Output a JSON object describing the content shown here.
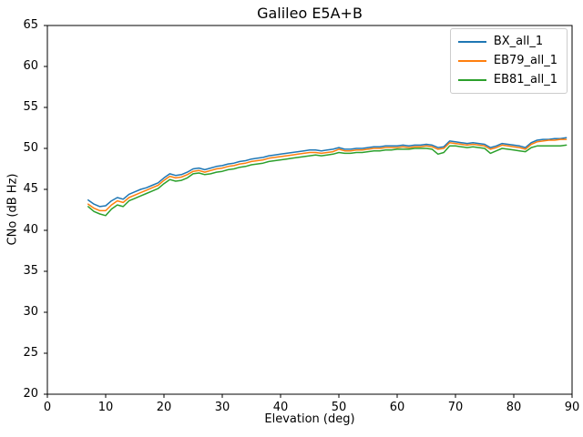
{
  "chart_data": {
    "type": "line",
    "title": "Galileo E5A+B",
    "xlabel": "Elevation (deg)",
    "ylabel": "CNo (dB Hz)",
    "xlim": [
      0,
      90
    ],
    "ylim": [
      20,
      65
    ],
    "xticks": [
      0,
      10,
      20,
      30,
      40,
      50,
      60,
      70,
      80,
      90
    ],
    "yticks": [
      20,
      25,
      30,
      35,
      40,
      45,
      50,
      55,
      60,
      65
    ],
    "grid": false,
    "legend_position": "upper right",
    "line_width": 1.5,
    "axis_color": "#000000",
    "legend_border_color": "#cccccc",
    "x": [
      7,
      8,
      9,
      10,
      11,
      12,
      13,
      14,
      15,
      16,
      17,
      18,
      19,
      20,
      21,
      22,
      23,
      24,
      25,
      26,
      27,
      28,
      29,
      30,
      31,
      32,
      33,
      34,
      35,
      36,
      37,
      38,
      39,
      40,
      41,
      42,
      43,
      44,
      45,
      46,
      47,
      48,
      49,
      50,
      51,
      52,
      53,
      54,
      55,
      56,
      57,
      58,
      59,
      60,
      61,
      62,
      63,
      64,
      65,
      66,
      67,
      68,
      69,
      70,
      71,
      72,
      73,
      74,
      75,
      76,
      77,
      78,
      79,
      80,
      81,
      82,
      83,
      84,
      85,
      86,
      87,
      88,
      89
    ],
    "series": [
      {
        "name": "BX_all_1",
        "color": "#1f77b4",
        "values": [
          43.7,
          43.2,
          42.9,
          43.0,
          43.6,
          44.0,
          43.8,
          44.4,
          44.7,
          45.0,
          45.2,
          45.5,
          45.8,
          46.4,
          46.9,
          46.7,
          46.8,
          47.1,
          47.5,
          47.6,
          47.4,
          47.6,
          47.8,
          47.9,
          48.1,
          48.2,
          48.4,
          48.5,
          48.7,
          48.8,
          48.9,
          49.1,
          49.2,
          49.3,
          49.4,
          49.5,
          49.6,
          49.7,
          49.8,
          49.8,
          49.7,
          49.8,
          49.9,
          50.1,
          49.9,
          49.9,
          50.0,
          50.0,
          50.1,
          50.2,
          50.2,
          50.3,
          50.3,
          50.3,
          50.4,
          50.3,
          50.4,
          50.4,
          50.5,
          50.4,
          50.1,
          50.2,
          50.9,
          50.8,
          50.7,
          50.6,
          50.7,
          50.6,
          50.5,
          50.1,
          50.3,
          50.6,
          50.5,
          50.4,
          50.3,
          50.1,
          50.7,
          51.0,
          51.1,
          51.1,
          51.2,
          51.2,
          51.3
        ]
      },
      {
        "name": "EB79_all_1",
        "color": "#ff7f0e",
        "values": [
          43.2,
          42.7,
          42.4,
          42.4,
          43.1,
          43.6,
          43.4,
          44.0,
          44.3,
          44.6,
          44.9,
          45.2,
          45.5,
          46.1,
          46.6,
          46.4,
          46.5,
          46.8,
          47.2,
          47.3,
          47.1,
          47.3,
          47.5,
          47.6,
          47.8,
          47.9,
          48.1,
          48.2,
          48.4,
          48.5,
          48.6,
          48.8,
          48.9,
          49.0,
          49.1,
          49.2,
          49.3,
          49.4,
          49.5,
          49.5,
          49.4,
          49.5,
          49.6,
          49.9,
          49.7,
          49.7,
          49.8,
          49.8,
          49.9,
          50.0,
          50.0,
          50.1,
          50.1,
          50.1,
          50.2,
          50.1,
          50.2,
          50.2,
          50.3,
          50.2,
          49.9,
          50.0,
          50.7,
          50.6,
          50.5,
          50.4,
          50.5,
          50.4,
          50.3,
          49.9,
          50.1,
          50.4,
          50.3,
          50.2,
          50.1,
          49.9,
          50.5,
          50.8,
          50.9,
          51.0,
          51.0,
          51.1,
          51.1
        ]
      },
      {
        "name": "EB81_all_1",
        "color": "#2ca02c",
        "values": [
          42.9,
          42.3,
          42.0,
          41.8,
          42.6,
          43.1,
          42.9,
          43.6,
          43.9,
          44.2,
          44.5,
          44.8,
          45.1,
          45.7,
          46.2,
          46.0,
          46.1,
          46.4,
          46.9,
          47.0,
          46.8,
          46.9,
          47.1,
          47.2,
          47.4,
          47.5,
          47.7,
          47.8,
          48.0,
          48.1,
          48.2,
          48.4,
          48.5,
          48.6,
          48.7,
          48.8,
          48.9,
          49.0,
          49.1,
          49.2,
          49.1,
          49.2,
          49.3,
          49.5,
          49.4,
          49.4,
          49.5,
          49.5,
          49.6,
          49.7,
          49.7,
          49.8,
          49.8,
          49.9,
          49.9,
          49.9,
          50.0,
          50.0,
          50.0,
          49.9,
          49.3,
          49.5,
          50.3,
          50.3,
          50.2,
          50.1,
          50.2,
          50.1,
          50.0,
          49.4,
          49.7,
          50.0,
          49.9,
          49.8,
          49.7,
          49.6,
          50.1,
          50.3,
          50.3,
          50.3,
          50.3,
          50.3,
          50.4
        ]
      }
    ]
  }
}
